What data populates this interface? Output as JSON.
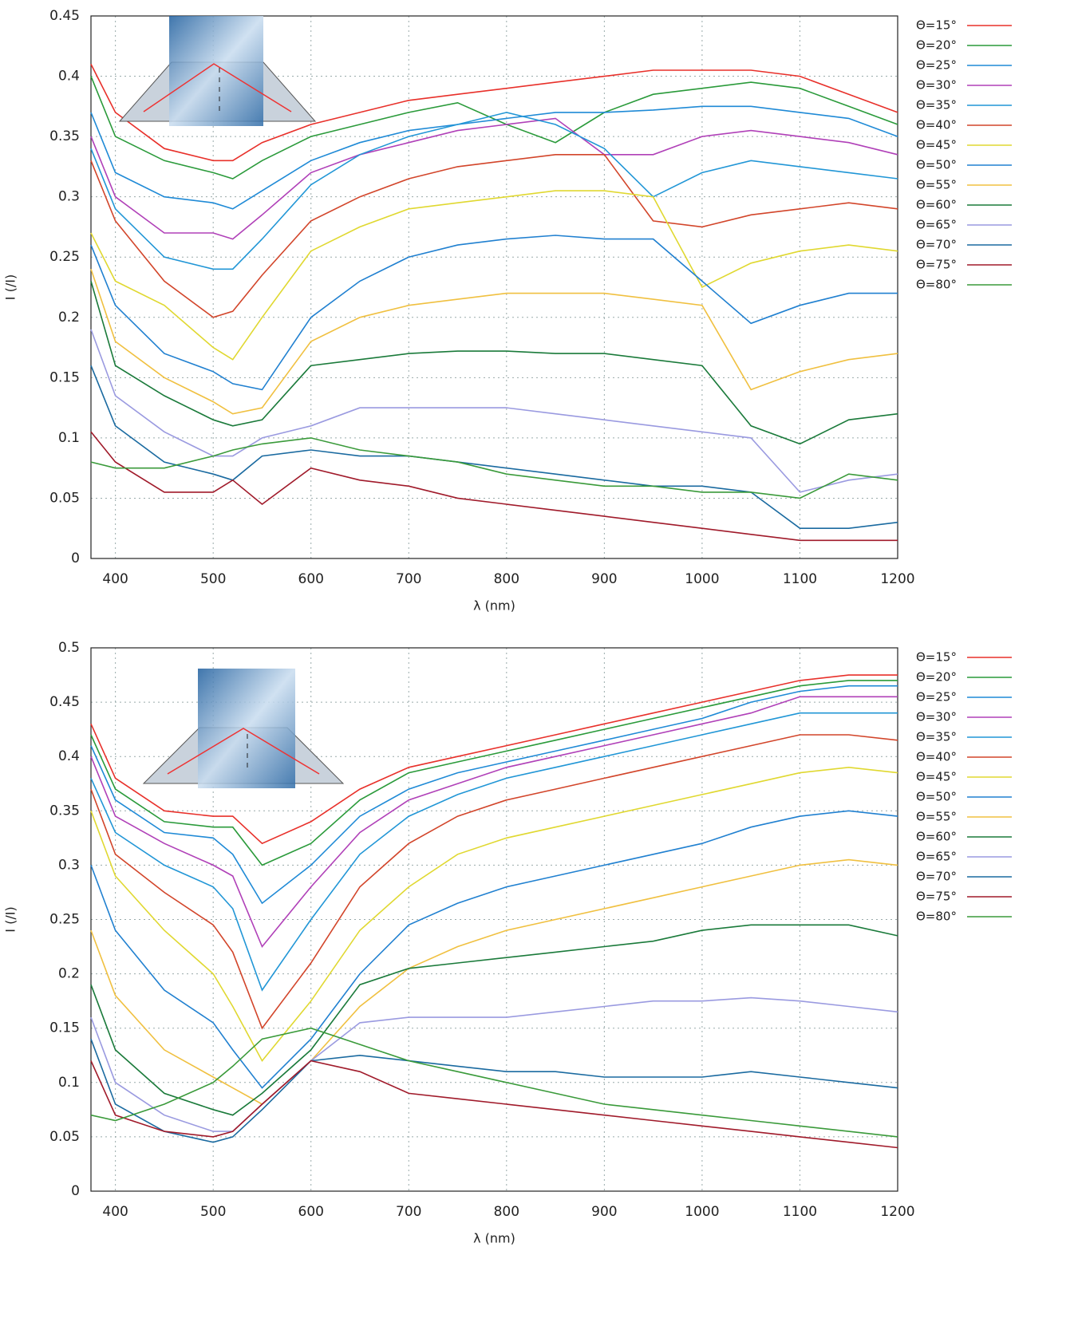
{
  "chart_data": [
    {
      "type": "line",
      "x_label": "λ (nm)",
      "y_label": "I (/I)",
      "grid": true,
      "xlim": [
        375,
        1200
      ],
      "xticks": [
        400,
        500,
        600,
        700,
        800,
        900,
        1000,
        1100,
        1200
      ],
      "ylim": [
        0,
        0.45
      ],
      "yticks": [
        0,
        0.05,
        0.1,
        0.15,
        0.2,
        0.25,
        0.3,
        0.35,
        0.4,
        0.45
      ],
      "x": [
        375,
        400,
        450,
        500,
        520,
        550,
        600,
        650,
        700,
        750,
        800,
        850,
        900,
        950,
        1000,
        1050,
        1100,
        1150,
        1200
      ],
      "series": [
        {
          "name": "Θ=15°",
          "color": "#e8302a",
          "values": [
            0.41,
            0.37,
            0.34,
            0.33,
            0.33,
            0.345,
            0.36,
            0.37,
            0.38,
            0.385,
            0.39,
            0.395,
            0.4,
            0.405,
            0.405,
            0.405,
            0.4,
            0.385,
            0.37
          ]
        },
        {
          "name": "Θ=20°",
          "color": "#2a9a3a",
          "values": [
            0.4,
            0.35,
            0.33,
            0.32,
            0.315,
            0.33,
            0.35,
            0.36,
            0.37,
            0.378,
            0.36,
            0.345,
            0.37,
            0.385,
            0.39,
            0.395,
            0.39,
            0.375,
            0.36
          ]
        },
        {
          "name": "Θ=25°",
          "color": "#1f8ad6",
          "values": [
            0.37,
            0.32,
            0.3,
            0.295,
            0.29,
            0.305,
            0.33,
            0.345,
            0.355,
            0.36,
            0.365,
            0.37,
            0.37,
            0.372,
            0.375,
            0.375,
            0.37,
            0.365,
            0.35
          ]
        },
        {
          "name": "Θ=30°",
          "color": "#b040b8",
          "values": [
            0.35,
            0.3,
            0.27,
            0.27,
            0.265,
            0.285,
            0.32,
            0.335,
            0.345,
            0.355,
            0.36,
            0.365,
            0.335,
            0.335,
            0.35,
            0.355,
            0.35,
            0.345,
            0.335
          ]
        },
        {
          "name": "Θ=35°",
          "color": "#2196d6",
          "values": [
            0.34,
            0.29,
            0.25,
            0.24,
            0.24,
            0.265,
            0.31,
            0.335,
            0.35,
            0.36,
            0.37,
            0.36,
            0.34,
            0.3,
            0.32,
            0.33,
            0.325,
            0.32,
            0.315
          ]
        },
        {
          "name": "Θ=40°",
          "color": "#d2452a",
          "values": [
            0.33,
            0.28,
            0.23,
            0.2,
            0.205,
            0.235,
            0.28,
            0.3,
            0.315,
            0.325,
            0.33,
            0.335,
            0.335,
            0.28,
            0.275,
            0.285,
            0.29,
            0.295,
            0.29
          ]
        },
        {
          "name": "Θ=45°",
          "color": "#e0d830",
          "values": [
            0.27,
            0.23,
            0.21,
            0.175,
            0.165,
            0.2,
            0.255,
            0.275,
            0.29,
            0.295,
            0.3,
            0.305,
            0.305,
            0.3,
            0.225,
            0.245,
            0.255,
            0.26,
            0.255
          ]
        },
        {
          "name": "Θ=50°",
          "color": "#2080d0",
          "values": [
            0.26,
            0.21,
            0.17,
            0.155,
            0.145,
            0.14,
            0.2,
            0.23,
            0.25,
            0.26,
            0.265,
            0.268,
            0.265,
            0.265,
            0.23,
            0.195,
            0.21,
            0.22,
            0.22
          ]
        },
        {
          "name": "Θ=55°",
          "color": "#f0c040",
          "values": [
            0.24,
            0.18,
            0.15,
            0.13,
            0.12,
            0.125,
            0.18,
            0.2,
            0.21,
            0.215,
            0.22,
            0.22,
            0.22,
            0.215,
            0.21,
            0.14,
            0.155,
            0.165,
            0.17
          ]
        },
        {
          "name": "Θ=60°",
          "color": "#1a7a3a",
          "values": [
            0.23,
            0.16,
            0.135,
            0.115,
            0.11,
            0.115,
            0.16,
            0.165,
            0.17,
            0.172,
            0.172,
            0.17,
            0.17,
            0.165,
            0.16,
            0.11,
            0.095,
            0.115,
            0.12
          ]
        },
        {
          "name": "Θ=65°",
          "color": "#9a9ae0",
          "values": [
            0.19,
            0.135,
            0.105,
            0.085,
            0.085,
            0.1,
            0.11,
            0.125,
            0.125,
            0.125,
            0.125,
            0.12,
            0.115,
            0.11,
            0.105,
            0.1,
            0.055,
            0.065,
            0.07
          ]
        },
        {
          "name": "Θ=70°",
          "color": "#1a6aa0",
          "values": [
            0.16,
            0.11,
            0.08,
            0.07,
            0.065,
            0.085,
            0.09,
            0.085,
            0.085,
            0.08,
            0.075,
            0.07,
            0.065,
            0.06,
            0.06,
            0.055,
            0.025,
            0.025,
            0.03
          ]
        },
        {
          "name": "Θ=75°",
          "color": "#a01a2a",
          "values": [
            0.105,
            0.08,
            0.055,
            0.055,
            0.065,
            0.045,
            0.075,
            0.065,
            0.06,
            0.05,
            0.045,
            0.04,
            0.035,
            0.03,
            0.025,
            0.02,
            0.015,
            0.015,
            0.015
          ]
        },
        {
          "name": "Θ=80°",
          "color": "#3a9a3a",
          "values": [
            0.08,
            0.075,
            0.075,
            0.085,
            0.09,
            0.095,
            0.1,
            0.09,
            0.085,
            0.08,
            0.07,
            0.065,
            0.06,
            0.06,
            0.055,
            0.055,
            0.05,
            0.07,
            0.065
          ]
        }
      ]
    },
    {
      "type": "line",
      "x_label": "λ (nm)",
      "y_label": "I (/I)",
      "grid": true,
      "xlim": [
        375,
        1200
      ],
      "xticks": [
        400,
        500,
        600,
        700,
        800,
        900,
        1000,
        1100,
        1200
      ],
      "ylim": [
        0,
        0.5
      ],
      "yticks": [
        0,
        0.05,
        0.1,
        0.15,
        0.2,
        0.25,
        0.3,
        0.35,
        0.4,
        0.45,
        0.5
      ],
      "x": [
        375,
        400,
        450,
        500,
        520,
        550,
        600,
        650,
        700,
        750,
        800,
        850,
        900,
        950,
        1000,
        1050,
        1100,
        1150,
        1200
      ],
      "series": [
        {
          "name": "Θ=15°",
          "color": "#e8302a",
          "values": [
            0.43,
            0.38,
            0.35,
            0.345,
            0.345,
            0.32,
            0.34,
            0.37,
            0.39,
            0.4,
            0.41,
            0.42,
            0.43,
            0.44,
            0.45,
            0.46,
            0.47,
            0.475,
            0.475
          ]
        },
        {
          "name": "Θ=20°",
          "color": "#2a9a3a",
          "values": [
            0.42,
            0.37,
            0.34,
            0.335,
            0.335,
            0.3,
            0.32,
            0.36,
            0.385,
            0.395,
            0.405,
            0.415,
            0.425,
            0.435,
            0.445,
            0.455,
            0.465,
            0.47,
            0.47
          ]
        },
        {
          "name": "Θ=25°",
          "color": "#1f8ad6",
          "values": [
            0.41,
            0.36,
            0.33,
            0.325,
            0.31,
            0.265,
            0.3,
            0.345,
            0.37,
            0.385,
            0.395,
            0.405,
            0.415,
            0.425,
            0.435,
            0.45,
            0.46,
            0.465,
            0.465
          ]
        },
        {
          "name": "Θ=30°",
          "color": "#b040b8",
          "values": [
            0.4,
            0.345,
            0.32,
            0.3,
            0.29,
            0.225,
            0.28,
            0.33,
            0.36,
            0.375,
            0.39,
            0.4,
            0.41,
            0.42,
            0.43,
            0.44,
            0.455,
            0.455,
            0.455
          ]
        },
        {
          "name": "Θ=35°",
          "color": "#2196d6",
          "values": [
            0.38,
            0.33,
            0.3,
            0.28,
            0.26,
            0.185,
            0.25,
            0.31,
            0.345,
            0.365,
            0.38,
            0.39,
            0.4,
            0.41,
            0.42,
            0.43,
            0.44,
            0.44,
            0.44
          ]
        },
        {
          "name": "Θ=40°",
          "color": "#d2452a",
          "values": [
            0.37,
            0.31,
            0.275,
            0.245,
            0.22,
            0.15,
            0.21,
            0.28,
            0.32,
            0.345,
            0.36,
            0.37,
            0.38,
            0.39,
            0.4,
            0.41,
            0.42,
            0.42,
            0.415
          ]
        },
        {
          "name": "Θ=45°",
          "color": "#e0d830",
          "values": [
            0.35,
            0.29,
            0.24,
            0.2,
            0.17,
            0.12,
            0.175,
            0.24,
            0.28,
            0.31,
            0.325,
            0.335,
            0.345,
            0.355,
            0.365,
            0.375,
            0.385,
            0.39,
            0.385
          ]
        },
        {
          "name": "Θ=50°",
          "color": "#2080d0",
          "values": [
            0.3,
            0.24,
            0.185,
            0.155,
            0.13,
            0.095,
            0.14,
            0.2,
            0.245,
            0.265,
            0.28,
            0.29,
            0.3,
            0.31,
            0.32,
            0.335,
            0.345,
            0.35,
            0.345
          ]
        },
        {
          "name": "Θ=55°",
          "color": "#f0c040",
          "values": [
            0.24,
            0.18,
            0.13,
            0.105,
            0.095,
            0.08,
            0.12,
            0.17,
            0.205,
            0.225,
            0.24,
            0.25,
            0.26,
            0.27,
            0.28,
            0.29,
            0.3,
            0.305,
            0.3
          ]
        },
        {
          "name": "Θ=60°",
          "color": "#1a7a3a",
          "values": [
            0.19,
            0.13,
            0.09,
            0.075,
            0.07,
            0.09,
            0.13,
            0.19,
            0.205,
            0.21,
            0.215,
            0.22,
            0.225,
            0.23,
            0.24,
            0.245,
            0.245,
            0.245,
            0.235
          ]
        },
        {
          "name": "Θ=65°",
          "color": "#9a9ae0",
          "values": [
            0.16,
            0.1,
            0.07,
            0.055,
            0.055,
            0.08,
            0.12,
            0.155,
            0.16,
            0.16,
            0.16,
            0.165,
            0.17,
            0.175,
            0.175,
            0.178,
            0.175,
            0.17,
            0.165
          ]
        },
        {
          "name": "Θ=70°",
          "color": "#1a6aa0",
          "values": [
            0.14,
            0.08,
            0.055,
            0.045,
            0.05,
            0.075,
            0.12,
            0.125,
            0.12,
            0.115,
            0.11,
            0.11,
            0.105,
            0.105,
            0.105,
            0.11,
            0.105,
            0.1,
            0.095
          ]
        },
        {
          "name": "Θ=75°",
          "color": "#a01a2a",
          "values": [
            0.12,
            0.07,
            0.055,
            0.05,
            0.055,
            0.08,
            0.12,
            0.11,
            0.09,
            0.085,
            0.08,
            0.075,
            0.07,
            0.065,
            0.06,
            0.055,
            0.05,
            0.045,
            0.04
          ]
        },
        {
          "name": "Θ=80°",
          "color": "#3a9a3a",
          "values": [
            0.07,
            0.065,
            0.08,
            0.1,
            0.115,
            0.14,
            0.15,
            0.135,
            0.12,
            0.11,
            0.1,
            0.09,
            0.08,
            0.075,
            0.07,
            0.065,
            0.06,
            0.055,
            0.05
          ]
        }
      ]
    }
  ]
}
